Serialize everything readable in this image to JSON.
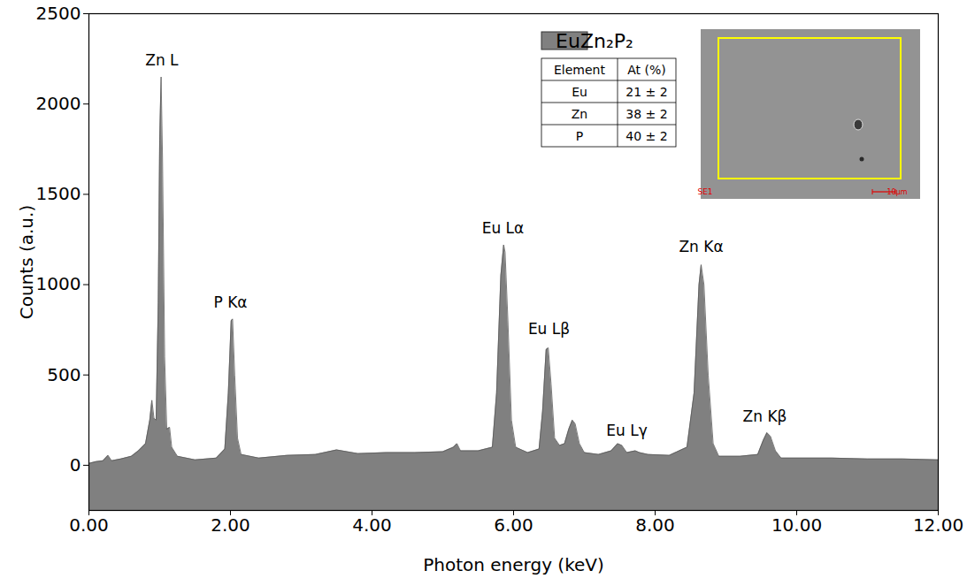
{
  "chart_data": {
    "type": "area",
    "xlabel": "Photon energy (keV)",
    "ylabel": "Counts (a.u.)",
    "x": [
      0.0,
      0.1,
      0.2,
      0.27,
      0.32,
      0.45,
      0.6,
      0.7,
      0.8,
      0.86,
      0.89,
      0.92,
      0.95,
      0.98,
      1.0,
      1.02,
      1.04,
      1.07,
      1.1,
      1.14,
      1.17,
      1.25,
      1.5,
      1.8,
      1.92,
      1.97,
      2.01,
      2.03,
      2.06,
      2.1,
      2.15,
      2.4,
      2.8,
      3.2,
      3.5,
      3.8,
      4.2,
      4.6,
      5.0,
      5.15,
      5.2,
      5.25,
      5.5,
      5.7,
      5.76,
      5.82,
      5.86,
      5.88,
      5.92,
      5.97,
      6.03,
      6.2,
      6.36,
      6.41,
      6.46,
      6.49,
      6.53,
      6.58,
      6.65,
      6.72,
      6.78,
      6.83,
      6.87,
      6.93,
      7.0,
      7.2,
      7.38,
      7.47,
      7.53,
      7.6,
      7.72,
      7.78,
      7.9,
      8.2,
      8.45,
      8.55,
      8.62,
      8.65,
      8.69,
      8.75,
      8.82,
      8.9,
      9.2,
      9.45,
      9.53,
      9.58,
      9.63,
      9.7,
      9.78,
      10.5,
      11.0,
      11.5,
      12.0
    ],
    "series": [
      {
        "name": "EuZn₂P₂",
        "color": "#808080",
        "values": [
          10,
          20,
          25,
          55,
          25,
          35,
          50,
          80,
          120,
          250,
          360,
          260,
          250,
          900,
          1800,
          2150,
          1700,
          600,
          200,
          210,
          100,
          50,
          30,
          40,
          90,
          400,
          800,
          810,
          500,
          150,
          60,
          40,
          55,
          60,
          85,
          65,
          70,
          70,
          75,
          100,
          120,
          80,
          80,
          100,
          400,
          1050,
          1220,
          1180,
          800,
          250,
          100,
          70,
          90,
          300,
          640,
          650,
          450,
          150,
          110,
          120,
          200,
          250,
          230,
          120,
          70,
          60,
          80,
          120,
          110,
          70,
          80,
          70,
          60,
          55,
          100,
          400,
          1000,
          1110,
          1000,
          500,
          120,
          50,
          50,
          60,
          140,
          180,
          160,
          80,
          40,
          40,
          35,
          35,
          30
        ]
      }
    ],
    "xlim": [
      0,
      12
    ],
    "xticks": [
      {
        "value": 0,
        "label": "0.00"
      },
      {
        "value": 2,
        "label": "2.00"
      },
      {
        "value": 4,
        "label": "4.00"
      },
      {
        "value": 6,
        "label": "6.00"
      },
      {
        "value": 8,
        "label": "8.00"
      },
      {
        "value": 10,
        "label": "10.00"
      },
      {
        "value": 12,
        "label": "12.00"
      }
    ],
    "ylim": [
      -250,
      2500
    ],
    "yticks": [
      0,
      500,
      1000,
      1500,
      2000,
      2500
    ],
    "legend": "top-right",
    "annotations": [
      {
        "text": "Zn L",
        "x": 1.03,
        "y": 2241
      },
      {
        "text": "P Kα",
        "x": 2.0,
        "y": 898
      },
      {
        "text": "Eu Lα",
        "x": 5.85,
        "y": 1313
      },
      {
        "text": "Eu Lβ",
        "x": 6.5,
        "y": 752
      },
      {
        "text": "Eu Lγ",
        "x": 7.6,
        "y": 190
      },
      {
        "text": "Zn Kα",
        "x": 8.65,
        "y": 1206
      },
      {
        "text": "Zn Kβ",
        "x": 9.55,
        "y": 268
      }
    ],
    "composition_table": {
      "columns": [
        "Element",
        "At (%)"
      ],
      "rows": [
        [
          "Eu",
          "21 ± 2"
        ],
        [
          "Zn",
          "38 ± 2"
        ],
        [
          "P",
          "40 ± 2"
        ]
      ]
    },
    "inset": {
      "labels": [
        "SE1",
        "10µm"
      ]
    }
  }
}
